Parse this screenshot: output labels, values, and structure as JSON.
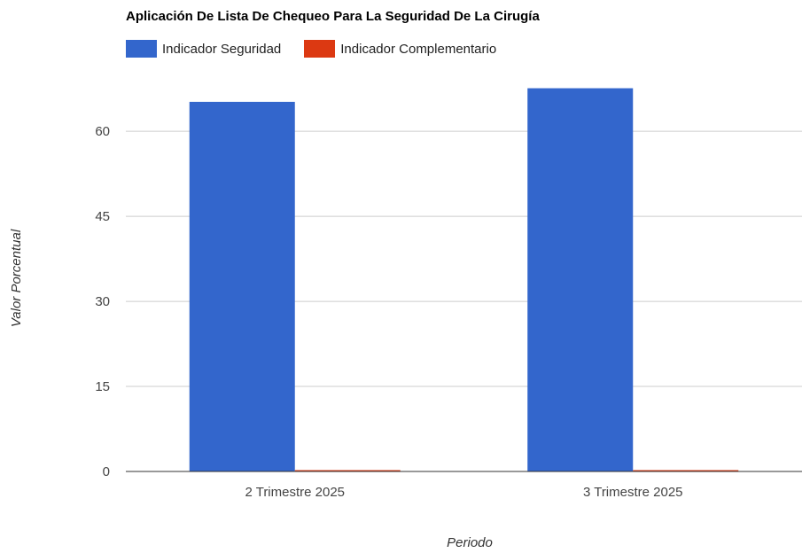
{
  "chart_data": {
    "type": "bar",
    "title": "Aplicación De Lista De Chequeo Para La Seguridad De La Cirugía",
    "xlabel": "Periodo",
    "ylabel": "Valor Porcentual",
    "categories": [
      "2 Trimestre 2025",
      "3 Trimestre 2025"
    ],
    "series": [
      {
        "name": "Indicador Seguridad",
        "color": "#3366cc",
        "values": [
          65.2,
          67.6
        ]
      },
      {
        "name": "Indicador Complementario",
        "color": "#dc3912",
        "values": [
          0,
          0
        ]
      }
    ],
    "ylim": [
      0,
      68
    ],
    "yticks": [
      0,
      15,
      30,
      45,
      60
    ],
    "grid": true,
    "legend_position": "top-left"
  }
}
